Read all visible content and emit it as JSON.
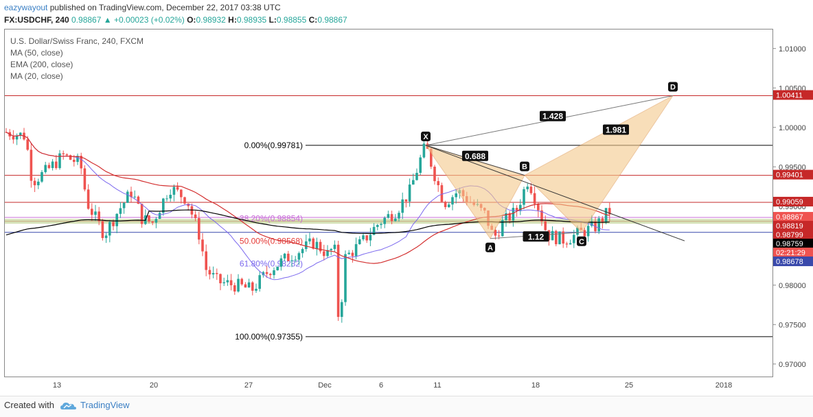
{
  "header": {
    "author": "eazywayout",
    "published_text": "published on TradingView.com, December 22, 2017 03:38 UTC",
    "symbol": "FX:USDCHF, 240",
    "last": "0.98867",
    "change": "+0.00023 (+0.02%)",
    "open_label": "O:",
    "open": "0.98932",
    "high_label": "H:",
    "high": "0.98935",
    "low_label": "L:",
    "low": "0.98855",
    "close_label": "C:",
    "close": "0.98867"
  },
  "legend": {
    "title": "U.S. Dollar/Swiss Franc, 240, FXCM",
    "ma50": "MA (50, close)",
    "ema200": "EMA (200, close)",
    "ma20": "MA (20, close)"
  },
  "footer": {
    "created": "Created with",
    "brand": "TradingView"
  },
  "colors": {
    "up": "#26a69a",
    "down": "#ef5350",
    "ma50": "#d32f2f",
    "ema200": "#000000",
    "ma20": "#7b68ee",
    "pattern_fill": "#f5c98b",
    "fib": "#000000"
  },
  "chart_data": {
    "type": "candlestick",
    "ylim": [
      0.9685,
      1.0125
    ],
    "y_ticks": [
      "1.01000",
      "1.00500",
      "1.00000",
      "0.99500",
      "0.99000",
      "0.98500",
      "0.98000",
      "0.97500",
      "0.97000"
    ],
    "x_ticks": [
      "13",
      "20",
      "27",
      "Dec",
      "6",
      "11",
      "18",
      "25",
      "2018"
    ],
    "price_tags": [
      {
        "value": 1.00411,
        "label": "1.00411",
        "color": "#c62828"
      },
      {
        "value": 0.99401,
        "label": "0.99401",
        "color": "#c62828"
      },
      {
        "value": 0.99059,
        "label": "0.99059",
        "color": "#c62828"
      },
      {
        "value": 0.98867,
        "label": "0.98867",
        "color": "#ef5350"
      },
      {
        "value": 0.98745,
        "label": "02:21:29",
        "color": "#ef5350"
      },
      {
        "value": 0.98819,
        "label": "0.98819",
        "color": "#c62828"
      },
      {
        "value": 0.98799,
        "label": "0.98799",
        "color": "#c62828"
      },
      {
        "value": 0.98759,
        "label": "0.98759",
        "color": "#000000"
      },
      {
        "value": 0.98678,
        "label": "0.98678",
        "color": "#3949ab"
      }
    ],
    "fib_levels": [
      {
        "label": "0.00%(0.99781)",
        "value": 0.99781
      },
      {
        "label": "38.20%(0.98854)",
        "value": 0.98854
      },
      {
        "label": "50.00%(0.98568)",
        "value": 0.98568
      },
      {
        "label": "61.80%(0.98282)",
        "value": 0.98282
      },
      {
        "label": "100.00%(0.97355)",
        "value": 0.97355
      }
    ],
    "pattern_points": [
      {
        "label": "X",
        "price": 0.99781
      },
      {
        "label": "A",
        "price": 0.986
      },
      {
        "label": "B",
        "price": 0.99401
      },
      {
        "label": "C",
        "price": 0.98678
      },
      {
        "label": "D",
        "price": 1.00411
      }
    ],
    "ratios": [
      "0.688",
      "1.12",
      "1.428",
      "1.981"
    ]
  }
}
